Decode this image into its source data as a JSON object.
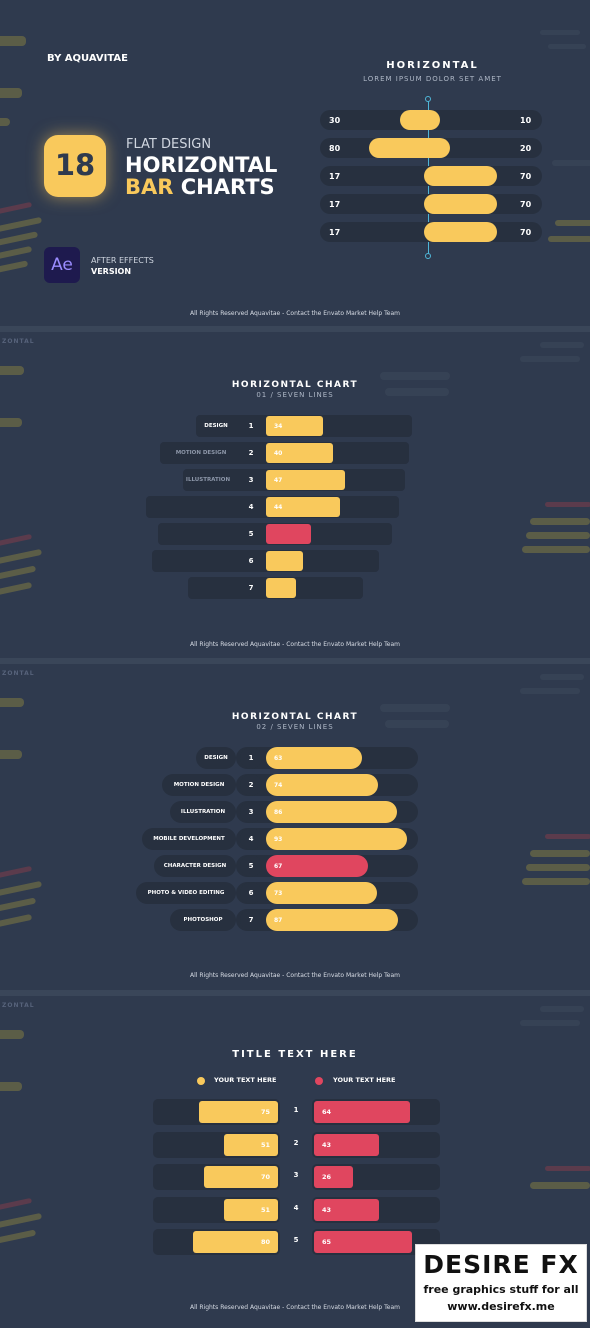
{
  "header": {
    "byline": "BY AQUAVITAE",
    "count_badge": "18",
    "subtitle": "FLAT DESIGN",
    "title_line1": "HORIZONTAL",
    "title_line2_a": "BAR",
    "title_line2_b": " CHARTS",
    "app_icon": "Ae",
    "app_line1": "AFTER EFFECTS",
    "app_line2": "VERSION"
  },
  "footer_text": "All Rights Reserved Aquavitae - Contact the Envato Market Help Team",
  "colors": {
    "bg": "#2f3a4e",
    "track": "#27303f",
    "yellow": "#f9c95c",
    "red": "#e0465f",
    "cyan": "#4fb6d8",
    "ae_bg": "#1e1a4e",
    "ae_fg": "#9a8cff"
  },
  "watermark": {
    "brand": "DESIRE FX",
    "line1": "free graphics stuff for all",
    "line2": "www.desirefx.me"
  },
  "chart_data": [
    {
      "type": "bar",
      "title": "HORIZONTAL",
      "subtitle": "LOREM IPSUM DOLOR SET AMET",
      "left_values": [
        30,
        80,
        17,
        17,
        17
      ],
      "right_values": [
        10,
        20,
        70,
        70,
        70
      ]
    },
    {
      "type": "bar",
      "title": "HORIZONTAL CHART",
      "subtitle": "01 / SEVEN LINES",
      "categories": [
        "DESIGN",
        "MOTION DESIGN",
        "ILLUSTRATION",
        "",
        "",
        "",
        ""
      ],
      "ranks": [
        "1",
        "2",
        "3",
        "4",
        "5",
        "6",
        "7"
      ],
      "values": [
        34,
        40,
        47,
        44,
        27,
        22,
        18
      ],
      "value_labels": [
        "34",
        "40",
        "47",
        "44",
        "",
        "",
        ""
      ],
      "highlight": [
        false,
        false,
        false,
        false,
        true,
        false,
        false
      ]
    },
    {
      "type": "bar",
      "title": "HORIZONTAL CHART",
      "subtitle": "02 / SEVEN LINES",
      "categories": [
        "DESIGN",
        "MOTION DESIGN",
        "ILLUSTRATION",
        "MOBILE DEVELOPMENT",
        "CHARACTER DESIGN",
        "PHOTO & VIDEO EDITING",
        "PHOTOSHOP"
      ],
      "ranks": [
        "1",
        "2",
        "3",
        "4",
        "5",
        "6",
        "7"
      ],
      "values": [
        63,
        74,
        86,
        93,
        67,
        73,
        87
      ],
      "value_labels": [
        "63",
        "74",
        "86",
        "93",
        "67",
        "73",
        "87"
      ],
      "highlight": [
        false,
        false,
        false,
        false,
        true,
        false,
        false
      ]
    },
    {
      "type": "bar",
      "title": "TITLE TEXT HERE",
      "legend": [
        "YOUR TEXT HERE",
        "YOUR TEXT HERE"
      ],
      "ranks": [
        "1",
        "2",
        "3",
        "4",
        "5"
      ],
      "series": [
        {
          "name": "YOUR TEXT HERE",
          "values": [
            75,
            51,
            70,
            51,
            80
          ]
        },
        {
          "name": "YOUR TEXT HERE",
          "values": [
            64,
            43,
            26,
            43,
            65
          ]
        }
      ]
    }
  ]
}
